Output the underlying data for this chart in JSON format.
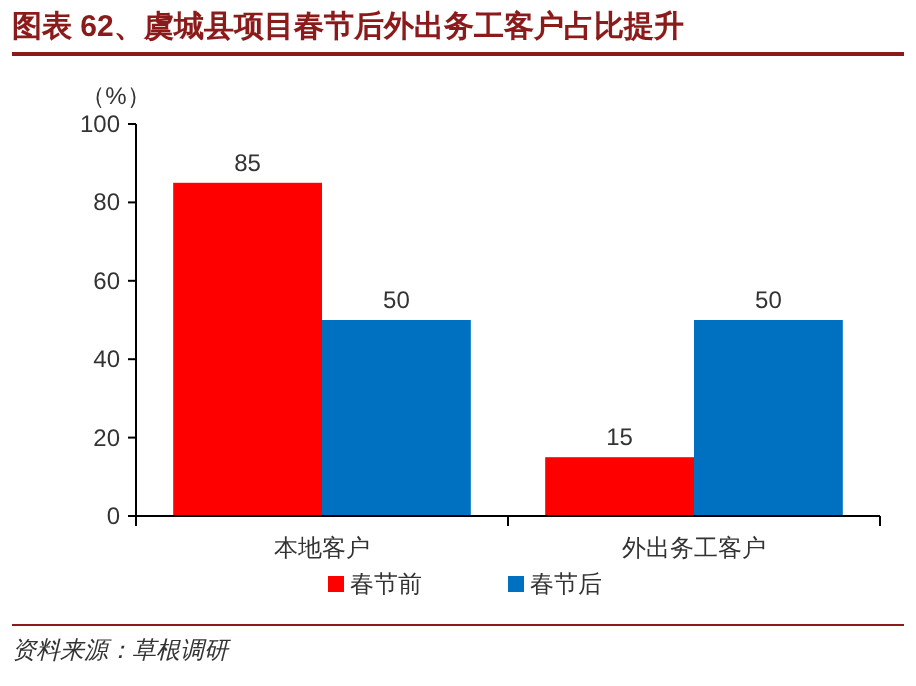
{
  "chart_data": {
    "type": "bar",
    "title": "图表 62、虞城县项目春节后外出务工客户占比提升",
    "ylabel": "（%）",
    "categories": [
      "本地客户",
      "外出务工客户"
    ],
    "series": [
      {
        "name": "春节前",
        "color": "#ff0000",
        "values": [
          85,
          15
        ]
      },
      {
        "name": "春节后",
        "color": "#0070c0",
        "values": [
          50,
          50
        ]
      }
    ],
    "ylim": [
      0,
      100
    ],
    "yticks": [
      0,
      20,
      40,
      60,
      80,
      100
    ],
    "data_labels": true,
    "legend": "bottom",
    "grid": false,
    "annotations": [
      "资料来源：草根调研"
    ]
  }
}
